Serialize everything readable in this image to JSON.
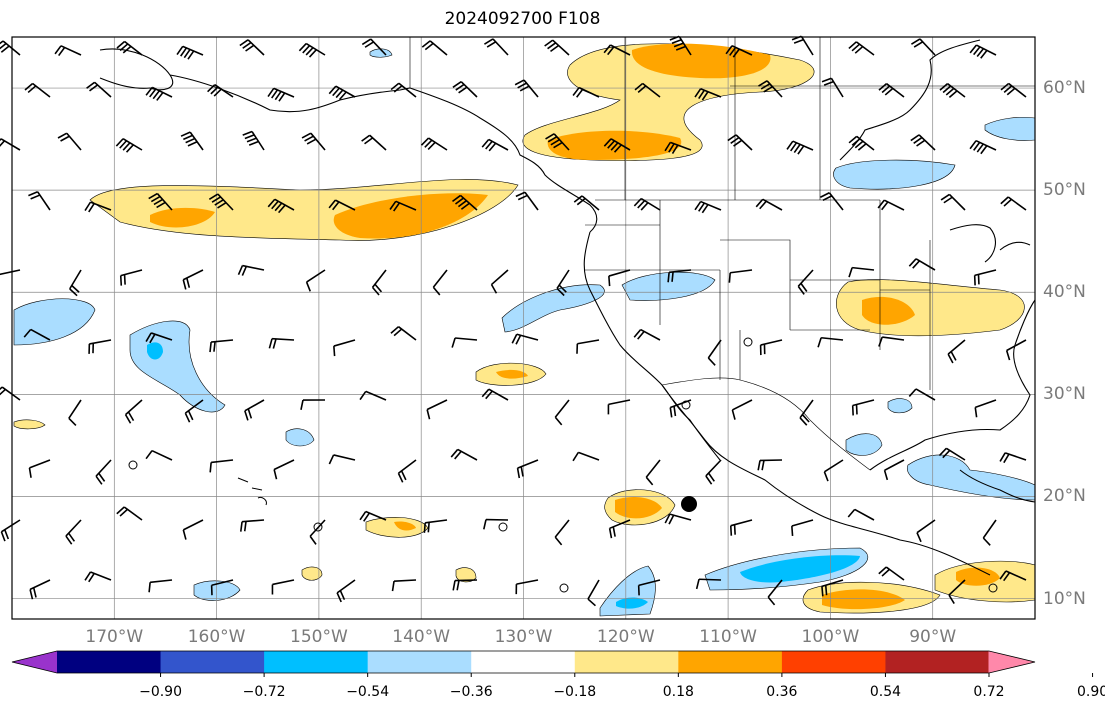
{
  "title": "2024092700 F108",
  "lon_labels": [
    "170°W",
    "160°W",
    "150°W",
    "140°W",
    "130°W",
    "120°W",
    "110°W",
    "100°W",
    "90°W"
  ],
  "lat_labels": [
    "60°N",
    "50°N",
    "40°N",
    "30°N",
    "20°N",
    "10°N"
  ],
  "colorbar": {
    "ticks": [
      "−0.90",
      "−0.72",
      "−0.54",
      "−0.36",
      "−0.18",
      "0.18",
      "0.36",
      "0.54",
      "0.72",
      "0.90"
    ],
    "colors": [
      "#9933cc",
      "#000080",
      "#3355cc",
      "#00bfff",
      "#aaddff",
      "#ffffff",
      "#ffe88a",
      "#ffa500",
      "#ff4000",
      "#b22222",
      "#ff88aa"
    ]
  },
  "colors": {
    "pos_light": "#ffe88a",
    "pos_dark": "#ffa500",
    "neg_light": "#aaddff",
    "neg_dark": "#00bfff",
    "grid": "#888888",
    "coast": "#000000"
  },
  "map_extent": {
    "lon": [
      -180,
      -80
    ],
    "lat": [
      8,
      65
    ]
  }
}
